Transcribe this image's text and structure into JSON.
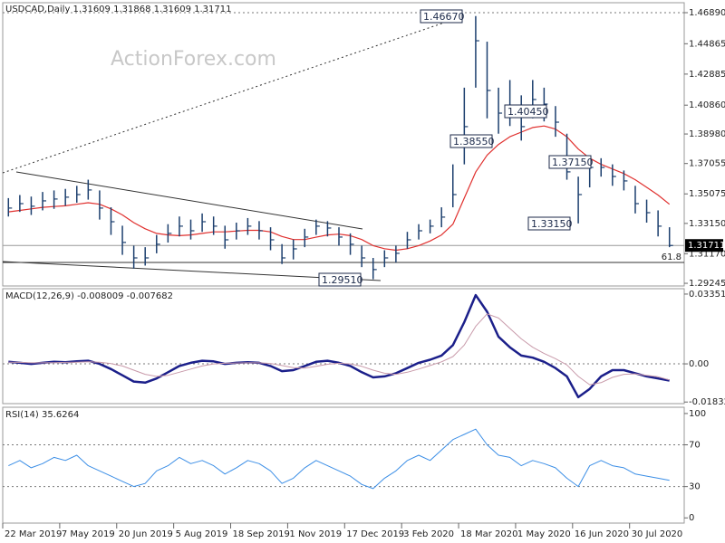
{
  "chart_data": [
    {
      "type": "ohlc",
      "title": "USDCAD,Daily  1.31609 1.31868 1.31609 1.31711",
      "watermark": "ActionForex.com",
      "color": "#1c3f6e",
      "xlim": [
        0,
        59
      ],
      "high": [
        1.348,
        1.35,
        1.349,
        1.352,
        1.353,
        1.354,
        1.356,
        1.36,
        1.353,
        1.342,
        1.33,
        1.317,
        1.316,
        1.324,
        1.331,
        1.336,
        1.334,
        1.338,
        1.336,
        1.33,
        1.332,
        1.335,
        1.333,
        1.329,
        1.318,
        1.321,
        1.328,
        1.334,
        1.333,
        1.329,
        1.325,
        1.317,
        1.309,
        1.314,
        1.317,
        1.326,
        1.331,
        1.334,
        1.342,
        1.37,
        1.42,
        1.4667,
        1.45,
        1.42,
        1.425,
        1.415,
        1.425,
        1.42,
        1.408,
        1.39,
        1.362,
        1.375,
        1.374,
        1.37,
        1.366,
        1.356,
        1.347,
        1.34,
        1.329
      ],
      "low": [
        1.336,
        1.339,
        1.337,
        1.34,
        1.341,
        1.343,
        1.345,
        1.347,
        1.334,
        1.324,
        1.311,
        1.302,
        1.304,
        1.312,
        1.319,
        1.323,
        1.321,
        1.326,
        1.324,
        1.315,
        1.321,
        1.324,
        1.321,
        1.314,
        1.305,
        1.308,
        1.316,
        1.324,
        1.323,
        1.317,
        1.311,
        1.303,
        1.2951,
        1.303,
        1.306,
        1.315,
        1.321,
        1.325,
        1.329,
        1.342,
        1.37,
        1.42,
        1.4,
        1.39,
        1.395,
        1.3855,
        1.4,
        1.398,
        1.388,
        1.36,
        1.3315,
        1.355,
        1.362,
        1.356,
        1.353,
        1.338,
        1.332,
        1.323,
        1.316
      ],
      "close": [
        1.3415,
        1.3444,
        1.3427,
        1.3462,
        1.3474,
        1.3486,
        1.3503,
        1.3533,
        1.3415,
        1.3326,
        1.3191,
        1.309,
        1.309,
        1.3179,
        1.325,
        1.3297,
        1.3267,
        1.3326,
        1.3297,
        1.3208,
        1.3267,
        1.3297,
        1.3267,
        1.3208,
        1.309,
        1.3149,
        1.3226,
        1.3297,
        1.3285,
        1.3226,
        1.3179,
        1.309,
        1.3014,
        1.309,
        1.312,
        1.3208,
        1.3267,
        1.3297,
        1.3356,
        1.3503,
        1.3946,
        1.4506,
        1.4182,
        1.4034,
        1.4064,
        1.3946,
        1.4123,
        1.4093,
        1.3975,
        1.3651,
        1.3503,
        1.368,
        1.368,
        1.3621,
        1.3592,
        1.3444,
        1.3385,
        1.3297,
        1.3171
      ],
      "ma": {
        "color": "#e0302e",
        "values": [
          1.339,
          1.34,
          1.341,
          1.342,
          1.3425,
          1.343,
          1.344,
          1.345,
          1.344,
          1.341,
          1.337,
          1.332,
          1.328,
          1.325,
          1.324,
          1.3235,
          1.324,
          1.325,
          1.326,
          1.326,
          1.3265,
          1.327,
          1.327,
          1.326,
          1.323,
          1.321,
          1.321,
          1.3225,
          1.324,
          1.3245,
          1.3235,
          1.321,
          1.317,
          1.315,
          1.314,
          1.315,
          1.317,
          1.32,
          1.324,
          1.331,
          1.348,
          1.365,
          1.376,
          1.383,
          1.388,
          1.391,
          1.394,
          1.395,
          1.393,
          1.388,
          1.38,
          1.374,
          1.37,
          1.367,
          1.364,
          1.36,
          1.355,
          1.35,
          1.344
        ]
      },
      "last_price": {
        "value": 1.31711,
        "label": "1.31711"
      },
      "annotations": [
        "1.46670",
        "1.40450",
        "1.38550",
        "1.37150",
        "1.33150",
        "1.29510"
      ],
      "fib_label": "61.8",
      "ylim": [
        1.2907,
        1.4754
      ],
      "yticks": [
        {
          "value": 1.4689,
          "label": "1.46890"
        },
        1.44865,
        1.42885,
        {
          "value": 1.4086,
          "label": "1.40860"
        },
        {
          "value": 1.3898,
          "label": "1.38980"
        },
        1.37055,
        1.35075,
        {
          "value": 1.3315,
          "label": "1.33150"
        },
        {
          "value": 1.3117,
          "label": "1.31170"
        },
        1.29245
      ]
    },
    {
      "type": "line",
      "title": "MACD(12,26,9) -0.008009 -0.007682",
      "xlim": [
        0,
        59
      ],
      "series": [
        {
          "color": "#1b1f8a",
          "values": [
            0.001,
            0.0005,
            0.0,
            0.0005,
            0.001,
            0.0008,
            0.0012,
            0.0015,
            0.0,
            -0.0025,
            -0.0055,
            -0.0085,
            -0.009,
            -0.007,
            -0.004,
            -0.001,
            0.0005,
            0.0015,
            0.0012,
            0.0,
            0.0005,
            0.0008,
            0.0005,
            -0.001,
            -0.0035,
            -0.003,
            -0.001,
            0.001,
            0.0015,
            0.0005,
            -0.001,
            -0.004,
            -0.0065,
            -0.006,
            -0.0045,
            -0.002,
            0.0005,
            0.002,
            0.004,
            0.009,
            0.02,
            0.033,
            0.025,
            0.013,
            0.008,
            0.004,
            0.003,
            0.001,
            -0.002,
            -0.006,
            -0.016,
            -0.012,
            -0.006,
            -0.003,
            -0.003,
            -0.0045,
            -0.006,
            -0.007,
            -0.008
          ]
        },
        {
          "color": "#c89aaa",
          "values": [
            0.0008,
            0.0007,
            0.0005,
            0.0005,
            0.0006,
            0.0007,
            0.0008,
            0.001,
            0.0008,
            0.0001,
            -0.001,
            -0.003,
            -0.005,
            -0.006,
            -0.0055,
            -0.004,
            -0.0025,
            -0.001,
            0.0,
            0.0003,
            0.0004,
            0.0005,
            0.0005,
            0.0002,
            -0.0008,
            -0.0018,
            -0.002,
            -0.0012,
            -0.0002,
            0.0003,
            0.0,
            -0.0012,
            -0.003,
            -0.0045,
            -0.005,
            -0.004,
            -0.0025,
            -0.0008,
            0.001,
            0.0035,
            0.009,
            0.018,
            0.024,
            0.022,
            0.017,
            0.012,
            0.008,
            0.005,
            0.0025,
            -0.0005,
            -0.006,
            -0.01,
            -0.009,
            -0.0065,
            -0.005,
            -0.0048,
            -0.0055,
            -0.0062,
            -0.0077
          ]
        }
      ],
      "ylim": [
        -0.0191,
        0.0361
      ],
      "yticks": [
        0.033515,
        {
          "value": 0,
          "label": "0.00"
        },
        -0.018324
      ]
    },
    {
      "type": "line",
      "title": "RSI(14) 35.6264",
      "xlim": [
        0,
        59
      ],
      "series": [
        {
          "color": "#3b8ee6",
          "values": [
            50,
            55,
            48,
            52,
            58,
            55,
            60,
            50,
            45,
            40,
            35,
            30,
            33,
            45,
            50,
            58,
            52,
            55,
            50,
            42,
            48,
            55,
            52,
            45,
            33,
            38,
            48,
            55,
            50,
            45,
            40,
            32,
            28,
            38,
            45,
            55,
            60,
            55,
            65,
            75,
            80,
            85,
            70,
            60,
            58,
            50,
            55,
            52,
            48,
            38,
            30,
            50,
            55,
            50,
            48,
            42,
            40,
            38,
            36
          ]
        }
      ],
      "ylim": [
        -5,
        106
      ],
      "yticks": [
        100,
        70,
        30,
        0
      ],
      "xticks": [
        {
          "value": 0,
          "label": "22 Mar 2019"
        },
        {
          "value": 5,
          "label": "7 May 2019"
        },
        {
          "value": 10,
          "label": "20 Jun 2019"
        },
        {
          "value": 15,
          "label": "5 Aug 2019"
        },
        {
          "value": 20,
          "label": "18 Sep 2019"
        },
        {
          "value": 25,
          "label": "1 Nov 2019"
        },
        {
          "value": 30,
          "label": "17 Dec 2019"
        },
        {
          "value": 35,
          "label": "3 Feb 2020"
        },
        {
          "value": 40,
          "label": "18 Mar 2020"
        },
        {
          "value": 45,
          "label": "1 May 2020"
        },
        {
          "value": 50,
          "label": "16 Jun 2020"
        },
        {
          "value": 55,
          "label": "30 Jul 2020"
        }
      ]
    }
  ]
}
